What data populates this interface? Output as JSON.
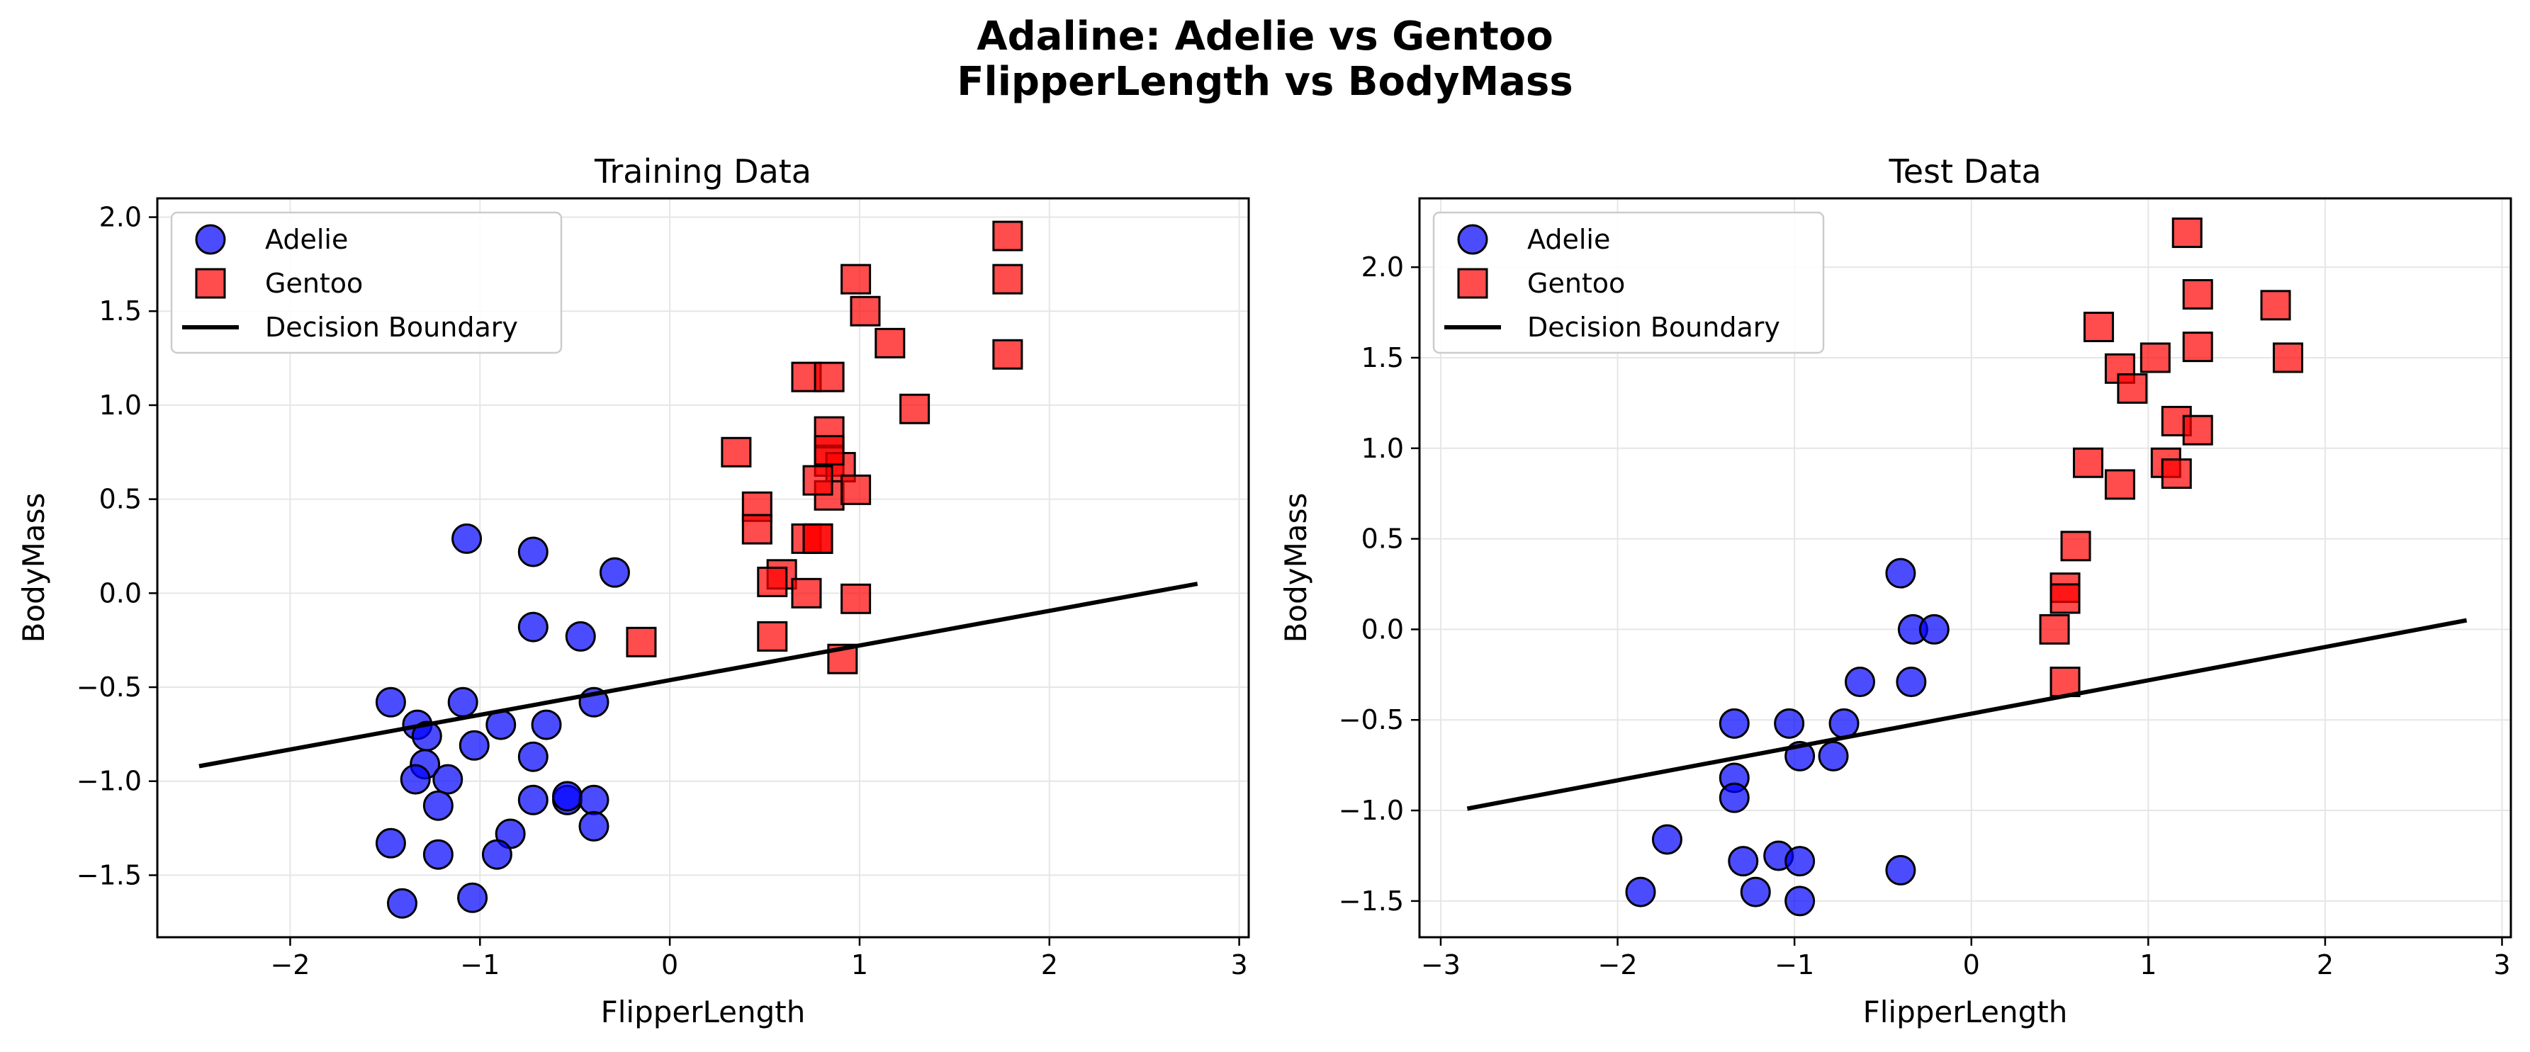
{
  "figure": {
    "title_line1": "Adaline: Adelie vs Gentoo",
    "title_line2": "FlipperLength vs BodyMass"
  },
  "colors": {
    "adelie": "#0000ff",
    "gentoo": "#ff0000",
    "marker_edge": "#000000",
    "boundary": "#000000",
    "grid": "#e6e6e6"
  },
  "chart_data": [
    {
      "type": "scatter",
      "title": "Training Data",
      "xlabel": "FlipperLength",
      "ylabel": "BodyMass",
      "xlim": [
        -2.7,
        3.05
      ],
      "ylim": [
        -1.83,
        2.1
      ],
      "xticks": [
        -2,
        -1,
        0,
        1,
        2,
        3
      ],
      "yticks": [
        -1.5,
        -1.0,
        -0.5,
        0.0,
        0.5,
        1.0,
        1.5,
        2.0
      ],
      "ytick_labels": [
        "−1.5",
        "−1.0",
        "−0.5",
        "0.0",
        "0.5",
        "1.0",
        "1.5",
        "2.0"
      ],
      "xtick_labels": [
        "−2",
        "−1",
        "0",
        "1",
        "2",
        "3"
      ],
      "grid": true,
      "legend_position": "top-left",
      "legend": [
        "Adelie",
        "Gentoo",
        "Decision Boundary"
      ],
      "series": [
        {
          "name": "Adelie",
          "marker": "circle",
          "x": [
            -1.07,
            -0.72,
            -0.29,
            -0.72,
            -0.47,
            -1.47,
            -1.33,
            -1.09,
            -0.65,
            -0.4,
            -0.89,
            -1.28,
            -1.03,
            -0.72,
            -1.29,
            -1.34,
            -1.17,
            -0.72,
            -0.54,
            -0.54,
            -0.4,
            -1.22,
            -0.84,
            -0.4,
            -1.47,
            -1.22,
            -0.91,
            -1.41,
            -1.04
          ],
          "y": [
            0.29,
            0.22,
            0.11,
            -0.18,
            -0.23,
            -0.58,
            -0.7,
            -0.58,
            -0.7,
            -0.58,
            -0.7,
            -0.76,
            -0.81,
            -0.87,
            -0.91,
            -0.99,
            -0.99,
            -1.1,
            -1.1,
            -1.08,
            -1.1,
            -1.13,
            -1.28,
            -1.24,
            -1.33,
            -1.39,
            -1.39,
            -1.65,
            -1.62
          ]
        },
        {
          "name": "Gentoo",
          "marker": "square",
          "x": [
            1.78,
            0.98,
            1.78,
            1.03,
            1.16,
            1.78,
            0.72,
            0.84,
            1.29,
            0.35,
            0.84,
            0.84,
            0.9,
            0.84,
            0.78,
            0.98,
            0.46,
            0.84,
            0.46,
            0.72,
            0.78,
            0.78,
            0.59,
            0.54,
            0.72,
            0.98,
            0.54,
            0.91,
            -0.15
          ],
          "y": [
            1.9,
            1.67,
            1.67,
            1.5,
            1.33,
            1.27,
            1.15,
            1.15,
            0.98,
            0.75,
            0.86,
            0.7,
            0.67,
            0.52,
            0.6,
            0.55,
            0.46,
            0.76,
            0.34,
            0.29,
            0.29,
            0.29,
            0.1,
            0.06,
            0.0,
            -0.03,
            -0.23,
            -0.35,
            -0.26
          ]
        }
      ],
      "boundary": {
        "name": "Decision Boundary",
        "x": [
          -2.48,
          2.78
        ],
        "y": [
          -0.92,
          0.05
        ]
      }
    },
    {
      "type": "scatter",
      "title": "Test Data",
      "xlabel": "FlipperLength",
      "ylabel": "BodyMass",
      "xlim": [
        -3.12,
        3.05
      ],
      "ylim": [
        -1.7,
        2.38
      ],
      "xticks": [
        -3,
        -2,
        -1,
        0,
        1,
        2,
        3
      ],
      "yticks": [
        -1.5,
        -1.0,
        -0.5,
        0.0,
        0.5,
        1.0,
        1.5,
        2.0
      ],
      "ytick_labels": [
        "−1.5",
        "−1.0",
        "−0.5",
        "0.0",
        "0.5",
        "1.0",
        "1.5",
        "2.0"
      ],
      "xtick_labels": [
        "−3",
        "−2",
        "−1",
        "0",
        "1",
        "2",
        "3"
      ],
      "grid": true,
      "legend_position": "top-left",
      "legend": [
        "Adelie",
        "Gentoo",
        "Decision Boundary"
      ],
      "series": [
        {
          "name": "Adelie",
          "marker": "circle",
          "x": [
            -0.4,
            -0.33,
            -0.21,
            -0.63,
            -0.34,
            -1.34,
            -1.03,
            -0.72,
            -0.97,
            -0.78,
            -1.34,
            -1.34,
            -1.72,
            -1.29,
            -1.09,
            -0.97,
            -1.22,
            -0.97,
            -1.87,
            -0.4
          ],
          "y": [
            0.31,
            0.0,
            0.0,
            -0.29,
            -0.29,
            -0.52,
            -0.52,
            -0.52,
            -0.7,
            -0.7,
            -0.82,
            -0.93,
            -1.16,
            -1.28,
            -1.25,
            -1.28,
            -1.45,
            -1.5,
            -1.45,
            -1.33
          ]
        },
        {
          "name": "Gentoo",
          "marker": "square",
          "x": [
            1.22,
            1.28,
            1.72,
            0.72,
            1.04,
            1.28,
            1.79,
            0.84,
            0.91,
            1.16,
            1.28,
            0.66,
            1.1,
            1.16,
            0.84,
            0.59,
            0.53,
            0.53,
            0.47,
            0.53
          ],
          "y": [
            2.19,
            1.85,
            1.79,
            1.67,
            1.5,
            1.56,
            1.5,
            1.44,
            1.33,
            1.15,
            1.1,
            0.92,
            0.92,
            0.86,
            0.8,
            0.46,
            0.23,
            0.17,
            0.0,
            -0.29
          ]
        }
      ],
      "boundary": {
        "name": "Decision Boundary",
        "x": [
          -2.85,
          2.8
        ],
        "y": [
          -0.99,
          0.05
        ]
      }
    }
  ]
}
